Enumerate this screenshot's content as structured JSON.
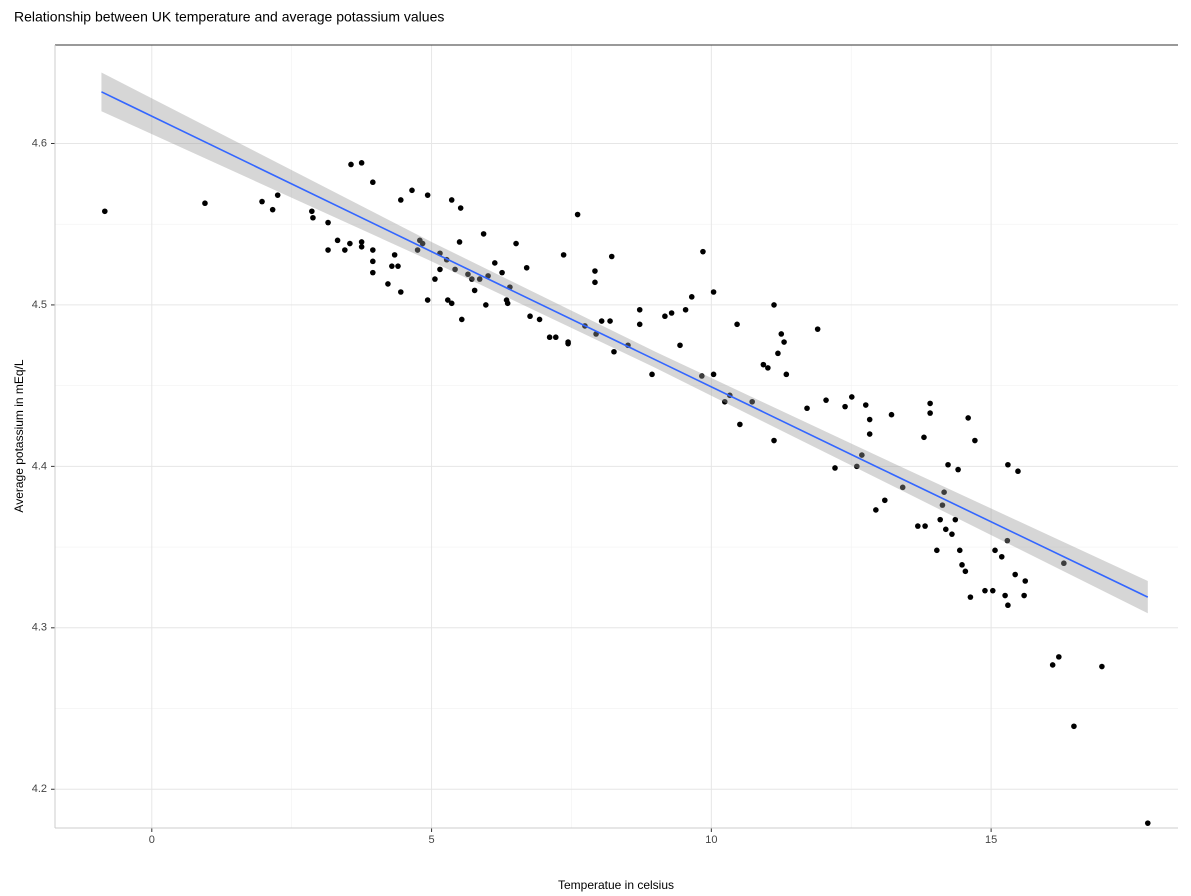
{
  "chart_data": {
    "type": "scatter",
    "title": "Relationship between UK temperature and average potassium values",
    "x_label": "Temperatue in celsius",
    "y_label": "Average potassium in mEq/L",
    "xlim": [
      -1.73,
      18.34
    ],
    "ylim": [
      4.176,
      4.661
    ],
    "xticks": [
      0,
      5,
      10,
      15
    ],
    "yticks": [
      4.2,
      4.3,
      4.4,
      4.5,
      4.6
    ],
    "grid": true,
    "point_color": "#000000",
    "line_color": "#3366ff",
    "band_color": "#999999",
    "points": {
      "x": [
        -0.84,
        0.95,
        1.97,
        2.16,
        2.25,
        2.86,
        2.88,
        3.15,
        3.15,
        3.32,
        3.45,
        3.56,
        3.54,
        3.75,
        3.75,
        3.75,
        3.95,
        3.95,
        3.95,
        3.95,
        4.22,
        4.29,
        4.34,
        4.4,
        4.45,
        4.45,
        4.65,
        4.75,
        4.79,
        4.84,
        4.93,
        4.93,
        5.06,
        5.15,
        5.15,
        5.27,
        5.36,
        5.29,
        5.42,
        5.36,
        5.52,
        5.5,
        5.54,
        5.65,
        5.72,
        5.77,
        5.86,
        5.93,
        5.97,
        6.01,
        6.13,
        6.26,
        6.34,
        6.36,
        6.4,
        6.51,
        6.7,
        6.76,
        6.93,
        7.11,
        7.22,
        7.36,
        7.44,
        7.44,
        7.61,
        7.74,
        7.92,
        7.92,
        7.94,
        8.04,
        8.19,
        8.22,
        8.26,
        8.51,
        8.72,
        8.72,
        8.94,
        9.17,
        9.29,
        9.44,
        9.54,
        9.65,
        9.85,
        9.83,
        10.04,
        10.04,
        10.24,
        10.33,
        10.46,
        10.51,
        10.73,
        10.93,
        11.01,
        11.12,
        11.12,
        11.19,
        11.25,
        11.3,
        11.34,
        11.9,
        11.71,
        12.05,
        12.21,
        12.39,
        12.51,
        12.6,
        12.69,
        12.76,
        12.83,
        12.83,
        12.94,
        13.1,
        13.22,
        13.42,
        13.69,
        13.82,
        13.8,
        13.91,
        13.91,
        14.03,
        14.09,
        14.13,
        14.16,
        14.19,
        14.23,
        14.3,
        14.36,
        14.41,
        14.44,
        14.48,
        14.54,
        14.59,
        14.63,
        14.71,
        14.89,
        15.03,
        15.07,
        15.19,
        15.25,
        15.29,
        15.3,
        15.3,
        15.43,
        15.48,
        15.59,
        15.61,
        16.3,
        16.1,
        16.21,
        16.48,
        16.98,
        17.8
      ],
      "y": [
        4.558,
        4.563,
        4.564,
        4.559,
        4.568,
        4.558,
        4.554,
        4.551,
        4.534,
        4.54,
        4.534,
        4.587,
        4.538,
        4.588,
        4.539,
        4.536,
        4.576,
        4.534,
        4.527,
        4.52,
        4.513,
        4.524,
        4.531,
        4.524,
        4.508,
        4.565,
        4.571,
        4.534,
        4.54,
        4.538,
        4.568,
        4.503,
        4.516,
        4.532,
        4.522,
        4.528,
        4.565,
        4.503,
        4.522,
        4.501,
        4.56,
        4.539,
        4.491,
        4.519,
        4.516,
        4.509,
        4.516,
        4.544,
        4.5,
        4.518,
        4.526,
        4.52,
        4.503,
        4.501,
        4.511,
        4.538,
        4.523,
        4.493,
        4.491,
        4.48,
        4.48,
        4.531,
        4.477,
        4.476,
        4.556,
        4.487,
        4.521,
        4.514,
        4.482,
        4.49,
        4.49,
        4.53,
        4.471,
        4.475,
        4.497,
        4.488,
        4.457,
        4.493,
        4.495,
        4.475,
        4.497,
        4.505,
        4.533,
        4.456,
        4.508,
        4.457,
        4.44,
        4.444,
        4.488,
        4.426,
        4.44,
        4.463,
        4.461,
        4.5,
        4.416,
        4.47,
        4.482,
        4.477,
        4.457,
        4.485,
        4.436,
        4.441,
        4.399,
        4.437,
        4.443,
        4.4,
        4.407,
        4.438,
        4.429,
        4.42,
        4.373,
        4.379,
        4.432,
        4.387,
        4.363,
        4.363,
        4.418,
        4.439,
        4.433,
        4.348,
        4.367,
        4.376,
        4.384,
        4.361,
        4.401,
        4.358,
        4.367,
        4.398,
        4.348,
        4.339,
        4.335,
        4.43,
        4.319,
        4.416,
        4.323,
        4.323,
        4.348,
        4.344,
        4.32,
        4.354,
        4.401,
        4.314,
        4.333,
        4.397,
        4.32,
        4.329,
        4.34,
        4.277,
        4.282,
        4.239,
        4.276,
        4.179
      ]
    },
    "fit": {
      "x": [
        -0.9,
        5,
        9,
        13,
        17.8
      ],
      "y": [
        4.632,
        4.533,
        4.466,
        4.399,
        4.319
      ],
      "lower": [
        4.62,
        4.527,
        4.461,
        4.392,
        4.309
      ],
      "upper": [
        4.644,
        4.539,
        4.471,
        4.406,
        4.329
      ]
    }
  }
}
